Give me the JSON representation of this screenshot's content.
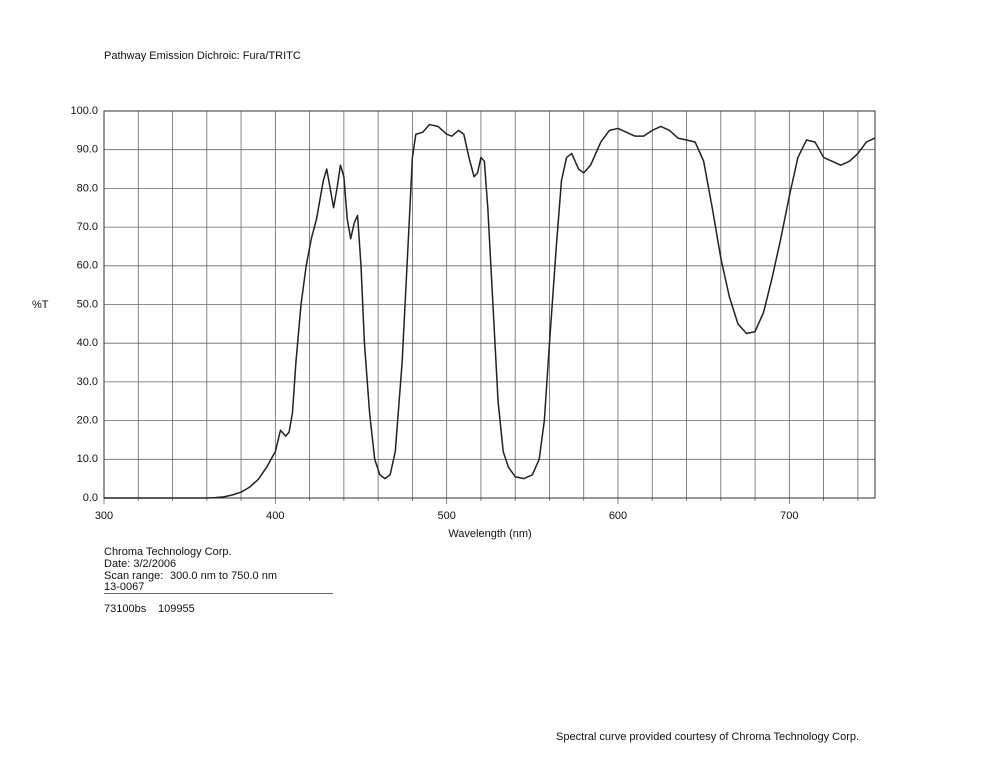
{
  "chart_data": {
    "type": "line",
    "title": "Pathway Emission Dichroic: Fura/TRITC",
    "y_label": "%T",
    "x_label": "Wavelength (nm)",
    "xlim": [
      300,
      750
    ],
    "ylim": [
      0,
      100
    ],
    "xticks": [
      300,
      400,
      500,
      600,
      700
    ],
    "x_minor_ticks": [
      320,
      340,
      360,
      380,
      420,
      440,
      460,
      480,
      520,
      540,
      560,
      580,
      620,
      640,
      660,
      680,
      720,
      740
    ],
    "yticks": [
      {
        "value": 0,
        "label": "0.0"
      },
      {
        "value": 10,
        "label": "10.0"
      },
      {
        "value": 20,
        "label": "20.0"
      },
      {
        "value": 30,
        "label": "30.0"
      },
      {
        "value": 40,
        "label": "40.0"
      },
      {
        "value": 50,
        "label": "50.0"
      },
      {
        "value": 60,
        "label": "60.0"
      },
      {
        "value": 70,
        "label": "70.0"
      },
      {
        "value": 80,
        "label": "80.0"
      },
      {
        "value": 90,
        "label": "90.0"
      },
      {
        "value": 100,
        "label": "100.0"
      }
    ],
    "grid": true,
    "color": "#222222",
    "x": [
      300,
      320,
      340,
      360,
      365,
      370,
      375,
      380,
      385,
      390,
      395,
      400,
      403,
      406,
      408,
      410,
      412,
      415,
      418,
      421,
      424,
      428,
      430,
      432,
      434,
      436,
      438,
      440,
      442,
      444,
      446,
      448,
      450,
      452,
      455,
      458,
      461,
      464,
      467,
      470,
      474,
      478,
      480,
      482,
      486,
      490,
      495,
      500,
      503,
      507,
      510,
      513,
      516,
      518,
      520,
      522,
      524,
      527,
      530,
      533,
      536,
      540,
      545,
      550,
      554,
      557,
      560,
      564,
      567,
      570,
      573,
      577,
      580,
      584,
      590,
      595,
      600,
      605,
      610,
      615,
      620,
      625,
      630,
      635,
      640,
      645,
      650,
      655,
      660,
      665,
      670,
      675,
      680,
      685,
      690,
      695,
      700,
      705,
      710,
      715,
      720,
      725,
      730,
      735,
      740,
      745,
      750
    ],
    "values": [
      0,
      0,
      0,
      0,
      0.1,
      0.3,
      0.8,
      1.5,
      2.8,
      4.8,
      8,
      12,
      17.5,
      16,
      17,
      22,
      35,
      50,
      60,
      67,
      72,
      82,
      85,
      80,
      75,
      80,
      86,
      83,
      72,
      67,
      71,
      73,
      60,
      40,
      22,
      10,
      6,
      5,
      6,
      12,
      35,
      70,
      88,
      94,
      94.5,
      96.5,
      96,
      94,
      93.5,
      95,
      94,
      88,
      83,
      84,
      88,
      87,
      75,
      50,
      25,
      12,
      8,
      5.5,
      5,
      6,
      10,
      20,
      40,
      65,
      82,
      88,
      89,
      85,
      84,
      86,
      92,
      95,
      95.5,
      94.5,
      93.5,
      93.5,
      95,
      96,
      95,
      93,
      92.5,
      92,
      87,
      75,
      62,
      52,
      45,
      42.5,
      43,
      48,
      57,
      67,
      78,
      88,
      92.5,
      92,
      88,
      87,
      86,
      87,
      89,
      92,
      93
    ],
    "annotations": [
      "Chroma Technology Corp.",
      "Date: 3/2/2006",
      "Scan range:",
      "300.0 nm to 750.0 nm",
      "13-0067",
      "73100bs",
      "109955",
      "Spectral curve provided courtesy of Chroma Technology Corp."
    ]
  }
}
